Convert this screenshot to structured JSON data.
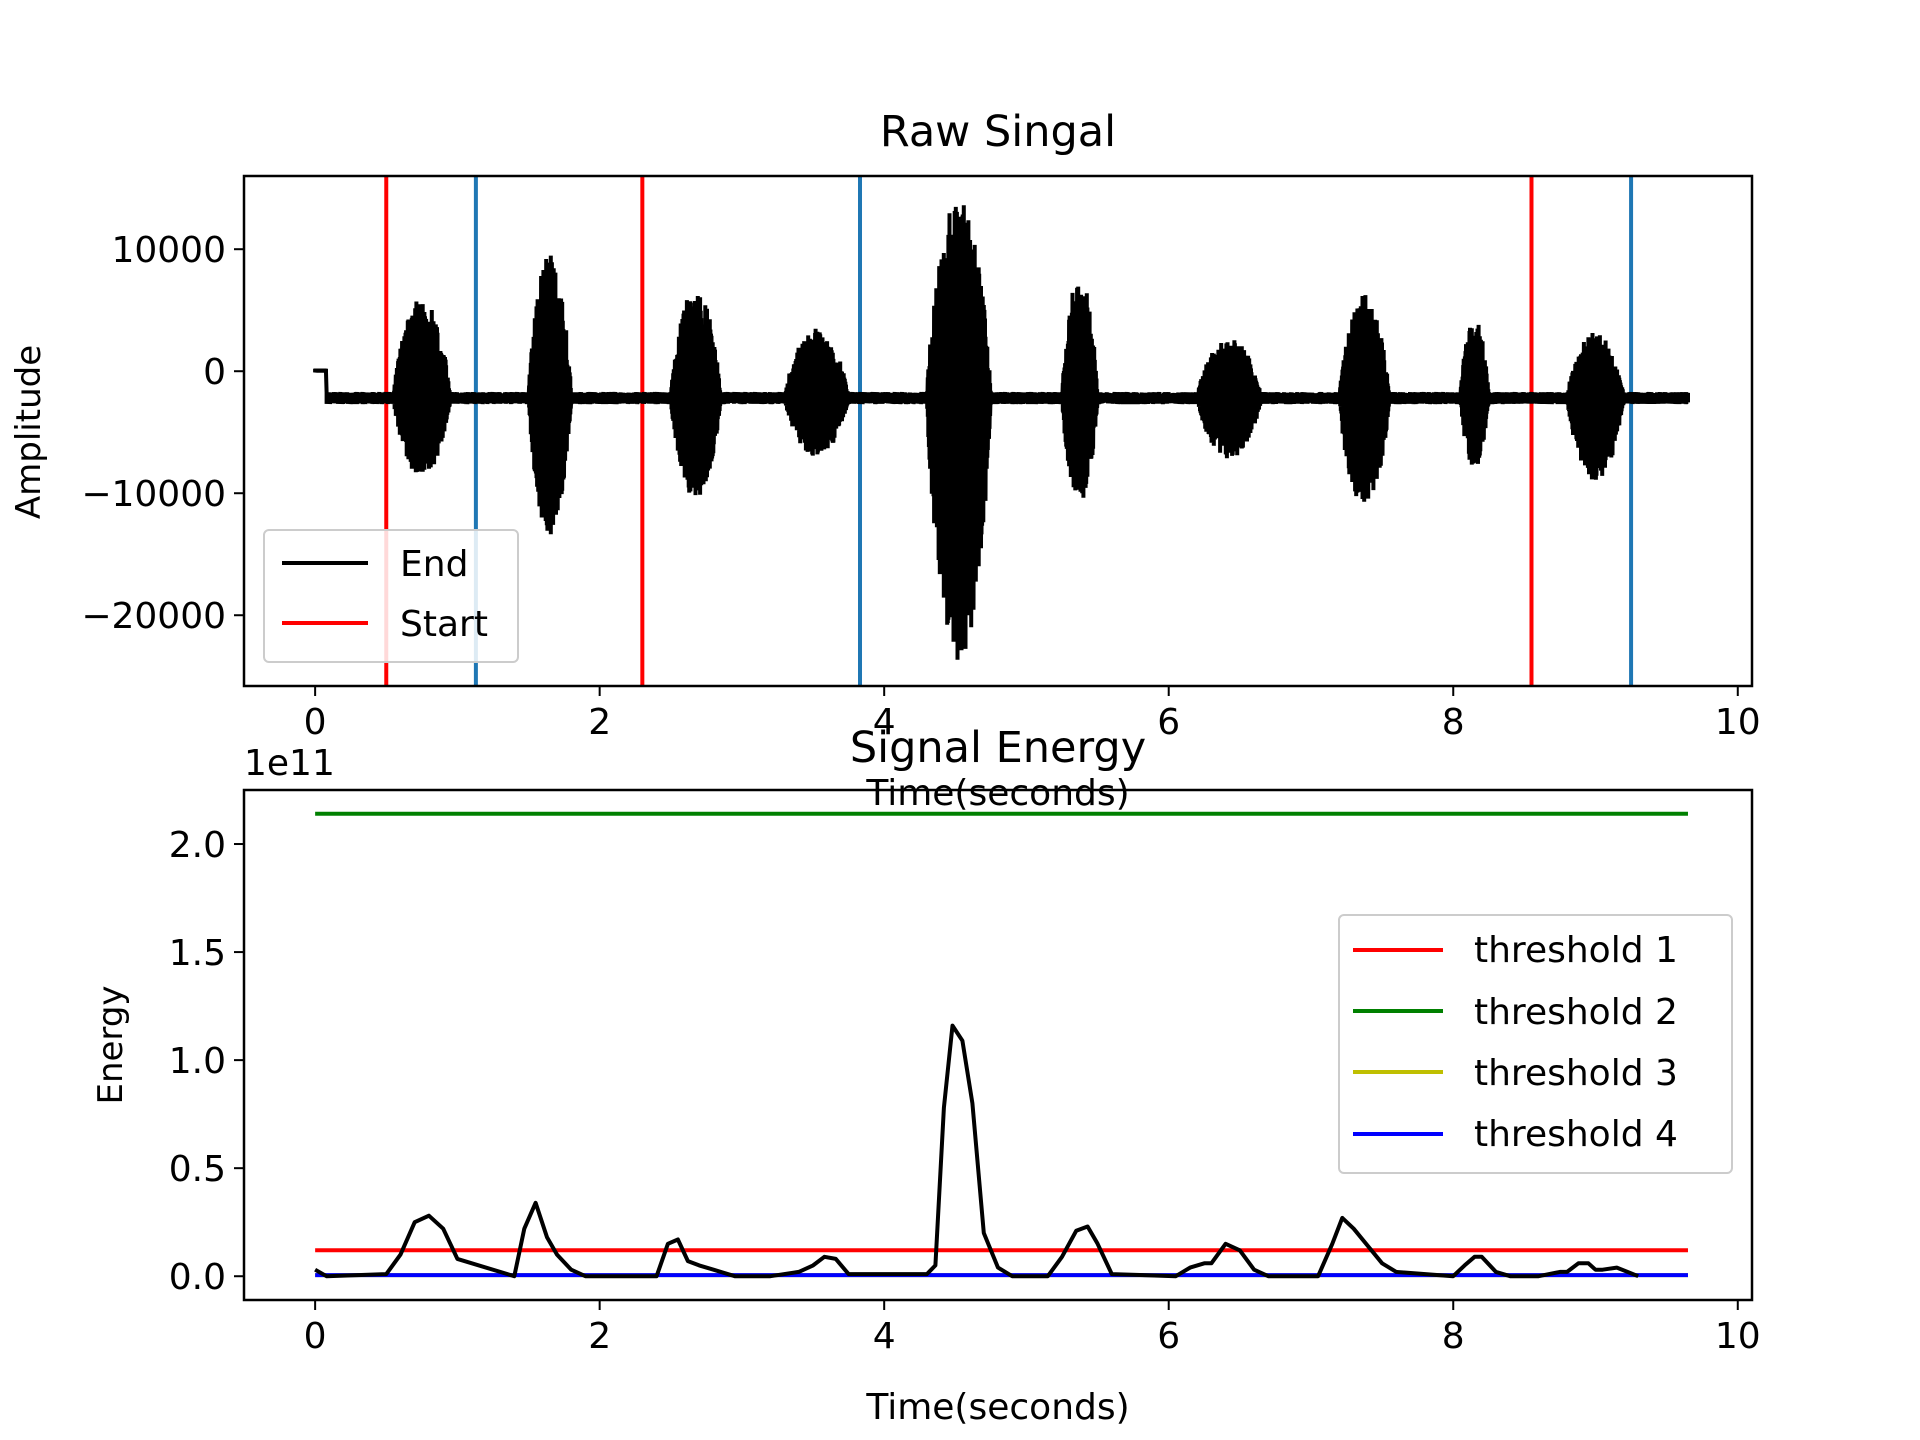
{
  "chart_data": [
    {
      "type": "line",
      "title": "Raw Singal",
      "xlabel": "Time(seconds)",
      "ylabel": "Amplitude",
      "xlim": [
        -0.5,
        10.1
      ],
      "ylim": [
        -25800,
        16000
      ],
      "x_ticks": [
        0,
        2,
        4,
        6,
        8,
        10
      ],
      "x_tick_labels": [
        "0",
        "2",
        "4",
        "6",
        "8",
        "10"
      ],
      "y_ticks": [
        10000,
        0,
        -10000,
        -20000
      ],
      "y_tick_labels": [
        "10000",
        "0",
        "−10000",
        "−20000"
      ],
      "grid": false,
      "legend": {
        "position": "lower-left",
        "entries": [
          {
            "label": "End",
            "color": "#000000"
          },
          {
            "label": "Start",
            "color": "#ff0000"
          }
        ]
      },
      "signal": {
        "color": "#000000",
        "baseline": -2200,
        "noise": 500,
        "start": 0.0,
        "end": 9.65,
        "bursts": [
          {
            "t0": 0.55,
            "t1": 0.95,
            "top": 6000,
            "bottom": -8800
          },
          {
            "t0": 1.5,
            "t1": 1.8,
            "top": 9800,
            "bottom": -13500
          },
          {
            "t0": 2.5,
            "t1": 2.85,
            "top": 6800,
            "bottom": -10500
          },
          {
            "t0": 3.3,
            "t1": 3.75,
            "top": 3500,
            "bottom": -7000
          },
          {
            "t0": 4.3,
            "t1": 4.75,
            "top": 14200,
            "bottom": -24000
          },
          {
            "t0": 5.25,
            "t1": 5.5,
            "top": 8000,
            "bottom": -10800
          },
          {
            "t0": 6.2,
            "t1": 6.65,
            "top": 2800,
            "bottom": -7200
          },
          {
            "t0": 7.2,
            "t1": 7.55,
            "top": 6300,
            "bottom": -11500
          },
          {
            "t0": 8.05,
            "t1": 8.25,
            "top": 4500,
            "bottom": -8000
          },
          {
            "t0": 8.8,
            "t1": 9.2,
            "top": 3200,
            "bottom": -9000
          }
        ]
      },
      "vlines": [
        {
          "x": 0.5,
          "color": "#ff0000"
        },
        {
          "x": 1.13,
          "color": "#1f77b4"
        },
        {
          "x": 2.3,
          "color": "#ff0000"
        },
        {
          "x": 3.83,
          "color": "#1f77b4"
        },
        {
          "x": 8.55,
          "color": "#ff0000"
        },
        {
          "x": 9.25,
          "color": "#1f77b4"
        }
      ]
    },
    {
      "type": "line",
      "title": "Signal Energy",
      "xlabel": "Time(seconds)",
      "ylabel": "Energy",
      "offset_label": "1e11",
      "xlim": [
        -0.5,
        10.1
      ],
      "ylim": [
        -0.11,
        2.25
      ],
      "x_ticks": [
        0,
        2,
        4,
        6,
        8,
        10
      ],
      "x_tick_labels": [
        "0",
        "2",
        "4",
        "6",
        "8",
        "10"
      ],
      "y_ticks": [
        0.0,
        0.5,
        1.0,
        1.5,
        2.0
      ],
      "y_tick_labels": [
        "0.0",
        "0.5",
        "1.0",
        "1.5",
        "2.0"
      ],
      "grid": false,
      "legend": {
        "position": "center-right",
        "entries": [
          {
            "label": "threshold 1",
            "color": "#ff0000"
          },
          {
            "label": "threshold 2",
            "color": "#008000"
          },
          {
            "label": "threshold 3",
            "color": "#bfbf00"
          },
          {
            "label": "threshold 4",
            "color": "#0000ff"
          }
        ]
      },
      "thresholds": [
        {
          "name": "threshold 1",
          "value": 0.12,
          "color": "#ff0000"
        },
        {
          "name": "threshold 2",
          "value": 2.14,
          "color": "#008000"
        },
        {
          "name": "threshold 3",
          "value": 0.005,
          "color": "#bfbf00"
        },
        {
          "name": "threshold 4",
          "value": 0.005,
          "color": "#0000ff"
        }
      ],
      "threshold_x_range": [
        0,
        9.65
      ],
      "energy": {
        "color": "#000000",
        "x": [
          0,
          0.08,
          0.5,
          0.6,
          0.7,
          0.8,
          0.9,
          1.0,
          1.4,
          1.47,
          1.55,
          1.63,
          1.7,
          1.8,
          1.9,
          2.4,
          2.48,
          2.55,
          2.62,
          2.7,
          2.8,
          2.95,
          3.2,
          3.4,
          3.5,
          3.58,
          3.66,
          3.75,
          4.3,
          4.36,
          4.42,
          4.48,
          4.55,
          4.62,
          4.7,
          4.8,
          4.9,
          5.15,
          5.25,
          5.35,
          5.43,
          5.5,
          5.6,
          6.05,
          6.15,
          6.25,
          6.3,
          6.4,
          6.5,
          6.6,
          6.7,
          7.05,
          7.15,
          7.22,
          7.3,
          7.4,
          7.5,
          7.6,
          8.0,
          8.08,
          8.15,
          8.2,
          8.3,
          8.4,
          8.6,
          8.75,
          8.8,
          8.88,
          8.95,
          9.0,
          9.05,
          9.15,
          9.3
        ],
        "y": [
          0.03,
          0.0,
          0.01,
          0.1,
          0.25,
          0.28,
          0.22,
          0.08,
          0.0,
          0.22,
          0.34,
          0.18,
          0.1,
          0.03,
          0.0,
          0.0,
          0.15,
          0.17,
          0.07,
          0.05,
          0.03,
          0.0,
          0.0,
          0.02,
          0.05,
          0.09,
          0.08,
          0.01,
          0.01,
          0.05,
          0.78,
          1.16,
          1.09,
          0.8,
          0.2,
          0.04,
          0.0,
          0.0,
          0.09,
          0.21,
          0.23,
          0.15,
          0.01,
          0.0,
          0.04,
          0.06,
          0.06,
          0.15,
          0.12,
          0.03,
          0.0,
          0.0,
          0.15,
          0.27,
          0.22,
          0.14,
          0.06,
          0.02,
          0.0,
          0.05,
          0.09,
          0.09,
          0.02,
          0.0,
          0.0,
          0.02,
          0.02,
          0.06,
          0.06,
          0.03,
          0.03,
          0.04,
          0.0
        ]
      }
    }
  ]
}
